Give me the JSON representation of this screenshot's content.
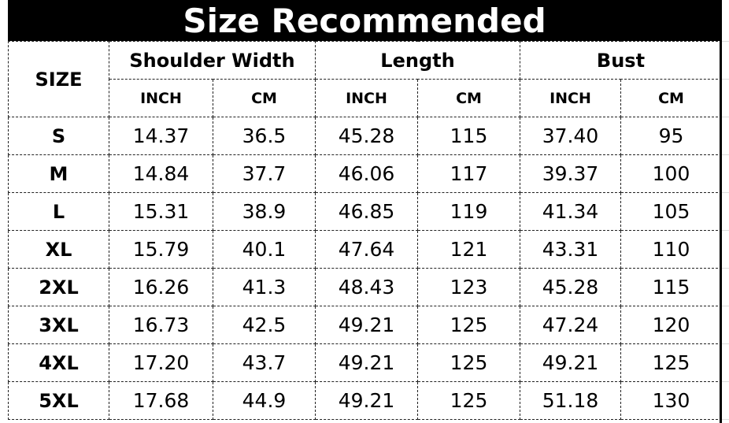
{
  "title": "Size Recommended",
  "header": {
    "size": "SIZE",
    "groups": [
      "Shoulder Width",
      "Length",
      "Bust"
    ],
    "units": [
      "INCH",
      "CM",
      "INCH",
      "CM",
      "INCH",
      "CM"
    ]
  },
  "rows": [
    [
      "S",
      "14.37",
      "36.5",
      "45.28",
      "115",
      "37.40",
      "95"
    ],
    [
      "M",
      "14.84",
      "37.7",
      "46.06",
      "117",
      "39.37",
      "100"
    ],
    [
      "L",
      "15.31",
      "38.9",
      "46.85",
      "119",
      "41.34",
      "105"
    ],
    [
      "XL",
      "15.79",
      "40.1",
      "47.64",
      "121",
      "43.31",
      "110"
    ],
    [
      "2XL",
      "16.26",
      "41.3",
      "48.43",
      "123",
      "45.28",
      "115"
    ],
    [
      "3XL",
      "16.73",
      "42.5",
      "49.21",
      "125",
      "47.24",
      "120"
    ],
    [
      "4XL",
      "17.20",
      "43.7",
      "49.21",
      "125",
      "49.21",
      "125"
    ],
    [
      "5XL",
      "17.68",
      "44.9",
      "49.21",
      "125",
      "51.18",
      "130"
    ]
  ]
}
